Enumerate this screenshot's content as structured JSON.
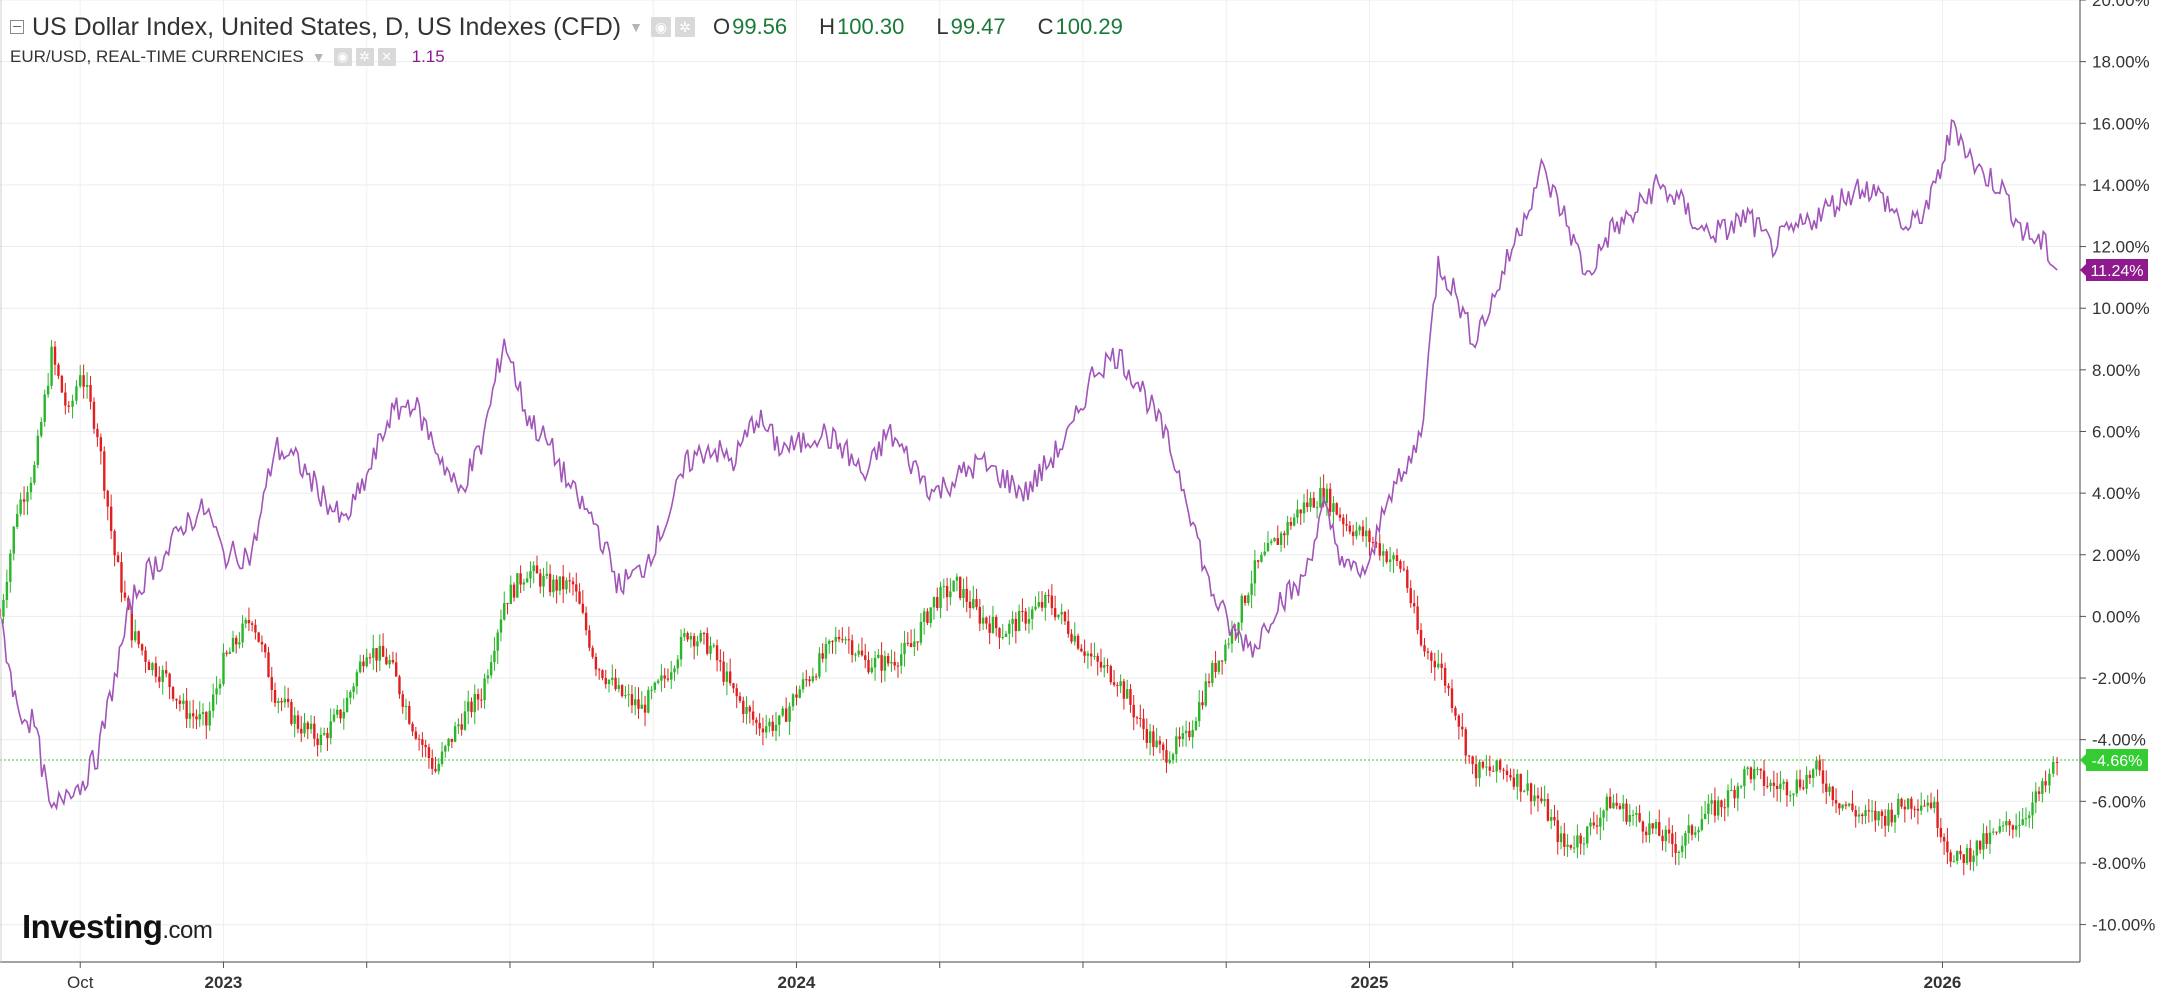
{
  "legend": {
    "main_title": "US Dollar Index, United States, D, US Indexes (CFD)",
    "open_label": "O",
    "open": "99.56",
    "high_label": "H",
    "high": "100.30",
    "low_label": "L",
    "low": "99.47",
    "close_label": "C",
    "close": "100.29",
    "secondary_title": "EUR/USD, REAL-TIME CURRENCIES",
    "secondary_value": "1.15",
    "settings_icon": "gear-icon",
    "visibility_icon": "eye-icon",
    "remove_icon": "close-icon"
  },
  "brand": {
    "name": "Investing",
    "suffix": ".com"
  },
  "chart_data": {
    "type": "line",
    "title": "US Dollar Index, United States, D, US Indexes (CFD)",
    "y_axis": {
      "unit": "%",
      "ylim": [
        -10.5,
        20
      ],
      "tick_labels": [
        "20.00%",
        "18.00%",
        "16.00%",
        "14.00%",
        "12.00%",
        "10.00%",
        "8.00%",
        "6.00%",
        "4.00%",
        "2.00%",
        "0.00%",
        "-2.00%",
        "-4.00%",
        "-6.00%",
        "-8.00%",
        "-10.00%"
      ],
      "tick_values": [
        20,
        18,
        16,
        14,
        12,
        10,
        8,
        6,
        4,
        2,
        0,
        -2,
        -4,
        -6,
        -8,
        -10
      ],
      "position": "right"
    },
    "x_axis": {
      "tick_labels": [
        "Oct",
        "2023",
        "2024",
        "2025",
        "2026"
      ],
      "tick_values": [
        2022.75,
        2023.0,
        2024.0,
        2025.0,
        2026.0
      ],
      "xlim": [
        2022.61,
        2026.24
      ]
    },
    "grid": true,
    "series": [
      {
        "name": "US Dollar Index",
        "style": "candlestick",
        "color_up": "#2ab52a",
        "color_down": "#e02020",
        "last_value": -4.66,
        "last_label": "-4.66%",
        "x": [
          2022.61,
          2022.64,
          2022.67,
          2022.7,
          2022.73,
          2022.75,
          2022.78,
          2022.81,
          2022.84,
          2022.87,
          2022.9,
          2022.93,
          2022.97,
          2023.0,
          2023.05,
          2023.09,
          2023.13,
          2023.17,
          2023.21,
          2023.25,
          2023.29,
          2023.33,
          2023.37,
          2023.41,
          2023.45,
          2023.49,
          2023.53,
          2023.57,
          2023.61,
          2023.65,
          2023.69,
          2023.73,
          2023.77,
          2023.81,
          2023.85,
          2023.89,
          2023.93,
          2023.97,
          2024.0,
          2024.04,
          2024.08,
          2024.12,
          2024.16,
          2024.2,
          2024.24,
          2024.28,
          2024.32,
          2024.36,
          2024.4,
          2024.44,
          2024.48,
          2024.52,
          2024.56,
          2024.6,
          2024.64,
          2024.68,
          2024.72,
          2024.76,
          2024.8,
          2024.84,
          2024.88,
          2024.92,
          2024.96,
          2025.0,
          2025.03,
          2025.06,
          2025.09,
          2025.12,
          2025.15,
          2025.18,
          2025.21,
          2025.24,
          2025.27,
          2025.3,
          2025.34,
          2025.38,
          2025.42,
          2025.46,
          2025.5,
          2025.54,
          2025.58,
          2025.62,
          2025.66,
          2025.7,
          2025.74,
          2025.78,
          2025.82,
          2025.86,
          2025.9,
          2025.94,
          2025.98,
          2026.02,
          2026.06,
          2026.1,
          2026.14,
          2026.18,
          2026.2
        ],
        "y": [
          0.0,
          3.5,
          4.8,
          8.5,
          6.5,
          8.0,
          6.0,
          2.0,
          -0.5,
          -1.5,
          -2.0,
          -3.0,
          -3.5,
          -1.5,
          0.0,
          -2.5,
          -3.5,
          -4.0,
          -3.0,
          -1.0,
          -1.5,
          -3.5,
          -5.0,
          -3.5,
          -2.5,
          0.5,
          1.5,
          1.0,
          1.0,
          -1.5,
          -2.5,
          -3.0,
          -2.0,
          -0.5,
          -1.0,
          -2.5,
          -3.5,
          -3.5,
          -2.5,
          -1.5,
          -0.5,
          -1.5,
          -1.5,
          -1.0,
          0.5,
          1.0,
          0.0,
          -0.5,
          0.0,
          0.5,
          -0.5,
          -1.5,
          -2.0,
          -3.5,
          -4.5,
          -4.0,
          -2.0,
          -0.5,
          1.5,
          2.5,
          3.5,
          4.0,
          3.0,
          2.5,
          2.0,
          1.5,
          -1.0,
          -1.5,
          -3.0,
          -5.0,
          -5.0,
          -5.0,
          -5.5,
          -6.0,
          -7.5,
          -7.0,
          -6.0,
          -6.5,
          -7.0,
          -7.5,
          -6.5,
          -6.0,
          -5.0,
          -5.5,
          -5.5,
          -5.0,
          -6.0,
          -6.5,
          -6.5,
          -6.0,
          -6.0,
          -8.0,
          -7.5,
          -7.0,
          -6.5,
          -5.5,
          -4.66
        ]
      },
      {
        "name": "EUR/USD",
        "style": "line",
        "color": "#a155b9",
        "last_value": 11.24,
        "last_label": "11.24%",
        "x": [
          2022.61,
          2022.64,
          2022.67,
          2022.7,
          2022.73,
          2022.75,
          2022.78,
          2022.81,
          2022.84,
          2022.87,
          2022.9,
          2022.93,
          2022.97,
          2023.0,
          2023.05,
          2023.09,
          2023.13,
          2023.17,
          2023.21,
          2023.25,
          2023.29,
          2023.33,
          2023.37,
          2023.41,
          2023.45,
          2023.49,
          2023.53,
          2023.57,
          2023.61,
          2023.65,
          2023.69,
          2023.73,
          2023.77,
          2023.81,
          2023.85,
          2023.89,
          2023.93,
          2023.97,
          2024.0,
          2024.04,
          2024.08,
          2024.12,
          2024.16,
          2024.2,
          2024.24,
          2024.28,
          2024.32,
          2024.36,
          2024.4,
          2024.44,
          2024.48,
          2024.52,
          2024.56,
          2024.6,
          2024.64,
          2024.68,
          2024.72,
          2024.76,
          2024.8,
          2024.84,
          2024.88,
          2024.92,
          2024.96,
          2025.0,
          2025.03,
          2025.06,
          2025.09,
          2025.12,
          2025.15,
          2025.18,
          2025.21,
          2025.24,
          2025.27,
          2025.3,
          2025.34,
          2025.38,
          2025.42,
          2025.46,
          2025.5,
          2025.54,
          2025.58,
          2025.62,
          2025.66,
          2025.7,
          2025.74,
          2025.78,
          2025.82,
          2025.86,
          2025.9,
          2025.94,
          2025.98,
          2026.02,
          2026.06,
          2026.1,
          2026.14,
          2026.18,
          2026.2
        ],
        "y": [
          0.0,
          -3.0,
          -3.5,
          -6.5,
          -5.5,
          -5.5,
          -4.5,
          -2.0,
          0.5,
          1.5,
          2.0,
          3.0,
          3.5,
          2.0,
          2.0,
          5.5,
          5.0,
          4.0,
          3.0,
          4.5,
          6.5,
          7.0,
          5.5,
          4.0,
          5.5,
          9.0,
          6.5,
          5.5,
          4.0,
          3.0,
          1.0,
          1.5,
          3.0,
          5.0,
          5.5,
          5.0,
          6.5,
          5.5,
          5.5,
          6.0,
          5.5,
          4.5,
          6.0,
          5.0,
          4.0,
          4.5,
          5.0,
          4.5,
          4.0,
          5.0,
          6.0,
          8.0,
          8.5,
          7.5,
          6.0,
          4.0,
          1.0,
          -0.5,
          -1.0,
          0.5,
          1.0,
          3.5,
          1.5,
          1.5,
          4.0,
          4.5,
          6.0,
          11.5,
          10.5,
          9.0,
          10.0,
          11.5,
          13.0,
          14.5,
          13.0,
          11.0,
          12.5,
          13.0,
          14.0,
          13.5,
          12.5,
          12.5,
          13.0,
          12.0,
          12.5,
          13.0,
          13.5,
          14.0,
          13.5,
          12.5,
          13.5,
          16.0,
          14.5,
          14.0,
          12.5,
          12.0,
          11.24
        ]
      }
    ],
    "reference_line": {
      "value": -4.66,
      "color": "#33cc33",
      "style": "dotted"
    }
  }
}
